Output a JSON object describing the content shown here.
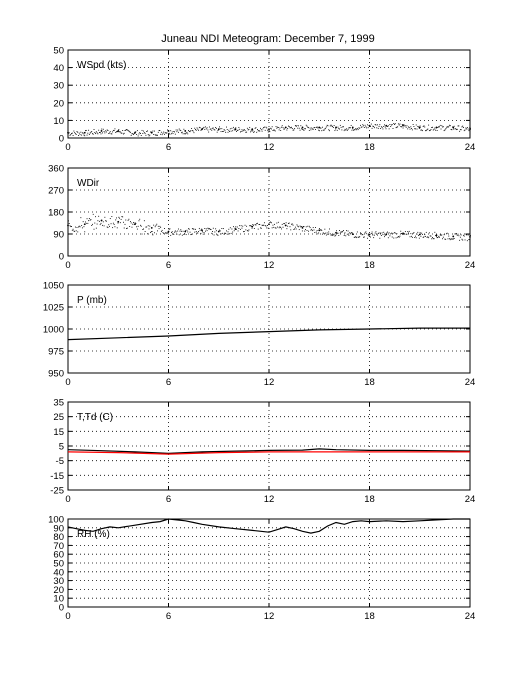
{
  "title": "Juneau NDI Meteogram:  December  7, 1999",
  "chart_data": [
    {
      "type": "scatter",
      "label": "WSpd (kts)",
      "x_range": [
        0,
        24
      ],
      "x_ticks": [
        "0",
        "6",
        "12",
        "18",
        "24"
      ],
      "ylim": [
        0,
        50
      ],
      "y_ticks": [
        "0",
        "10",
        "20",
        "30",
        "40",
        "50"
      ],
      "grid": true,
      "series": [
        {
          "color": "#000000",
          "x": [
            0,
            1,
            2,
            3,
            4,
            5,
            6,
            7,
            8,
            9,
            10,
            11,
            12,
            13,
            14,
            15,
            16,
            17,
            18,
            19,
            20,
            21,
            22,
            23,
            24
          ],
          "y": [
            3,
            3,
            4,
            4,
            3,
            3,
            4,
            4,
            5,
            5,
            5,
            5,
            5,
            6,
            6,
            6,
            6,
            6,
            7,
            7,
            7,
            6,
            6,
            6,
            5
          ]
        }
      ]
    },
    {
      "type": "scatter",
      "label": "WDir",
      "x_range": [
        0,
        24
      ],
      "x_ticks": [
        "0",
        "6",
        "12",
        "18",
        "24"
      ],
      "ylim": [
        0,
        360
      ],
      "y_ticks": [
        "0",
        "90",
        "180",
        "270",
        "360"
      ],
      "grid": true,
      "series": [
        {
          "color": "#000000",
          "x": [
            0,
            1,
            2,
            3,
            4,
            5,
            6,
            7,
            8,
            9,
            10,
            11,
            12,
            13,
            14,
            15,
            16,
            17,
            18,
            19,
            20,
            21,
            22,
            23,
            24
          ],
          "y": [
            125,
            130,
            145,
            140,
            130,
            115,
            100,
            100,
            105,
            100,
            110,
            120,
            130,
            125,
            115,
            105,
            95,
            90,
            88,
            88,
            90,
            88,
            85,
            80,
            78
          ]
        }
      ]
    },
    {
      "type": "line",
      "label": "P (mb)",
      "x_range": [
        0,
        24
      ],
      "x_ticks": [
        "0",
        "6",
        "12",
        "18",
        "24"
      ],
      "ylim": [
        950,
        1050
      ],
      "y_ticks": [
        "950",
        "975",
        "1000",
        "1025",
        "1050"
      ],
      "grid": true,
      "series": [
        {
          "color": "#000000",
          "x": [
            0,
            3,
            6,
            9,
            12,
            15,
            18,
            21,
            24
          ],
          "y": [
            988,
            990,
            992,
            995,
            997,
            999,
            1000,
            1001,
            1001
          ]
        }
      ]
    },
    {
      "type": "line",
      "label": "T,Td (C)",
      "x_range": [
        0,
        24
      ],
      "x_ticks": [
        "0",
        "6",
        "12",
        "18",
        "24"
      ],
      "ylim": [
        -25,
        35
      ],
      "y_ticks": [
        "-25",
        "-15",
        "-5",
        "5",
        "15",
        "25",
        "35"
      ],
      "grid": true,
      "series": [
        {
          "color": "#000000",
          "x": [
            0,
            2,
            4,
            6,
            8,
            10,
            12,
            14,
            15,
            16,
            18,
            20,
            22,
            24
          ],
          "y": [
            2.5,
            1.8,
            1,
            0,
            1,
            1.5,
            2,
            2.2,
            3,
            2.5,
            2,
            2,
            1.8,
            1.5
          ]
        },
        {
          "color": "#ff0000",
          "x": [
            0,
            3,
            6,
            9,
            12,
            15,
            18,
            21,
            24
          ],
          "y": [
            1,
            0.5,
            -0.5,
            0.5,
            1,
            1,
            1,
            1,
            1
          ]
        }
      ]
    },
    {
      "type": "line",
      "label": "RH (%)",
      "x_range": [
        0,
        24
      ],
      "x_ticks": [
        "0",
        "6",
        "12",
        "18",
        "24"
      ],
      "ylim": [
        0,
        100
      ],
      "y_ticks": [
        "0",
        "10",
        "20",
        "30",
        "40",
        "50",
        "60",
        "70",
        "80",
        "90",
        "100"
      ],
      "grid": true,
      "series": [
        {
          "color": "#000000",
          "x": [
            0,
            0.5,
            1,
            1.5,
            2,
            2.5,
            3,
            4,
            5,
            5.5,
            6,
            6.5,
            7,
            7.5,
            8,
            9,
            10,
            11,
            12,
            12.5,
            13,
            13.5,
            14,
            14.5,
            15,
            15.5,
            16,
            16.5,
            17,
            17.5,
            18,
            19,
            20,
            21,
            22,
            23,
            24
          ],
          "y": [
            91,
            89,
            87,
            86,
            89,
            91,
            90,
            93,
            96,
            97,
            100,
            99,
            98,
            96,
            94,
            91,
            89,
            87,
            85,
            88,
            91,
            89,
            86,
            84,
            86,
            92,
            96,
            94,
            97,
            98,
            97,
            98,
            97,
            98,
            99,
            100,
            100
          ]
        }
      ]
    }
  ]
}
